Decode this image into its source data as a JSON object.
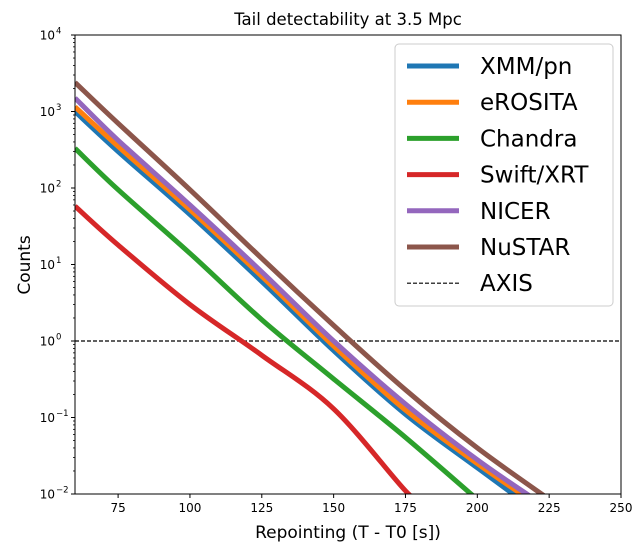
{
  "chart_data": {
    "type": "line",
    "title": "Tail detectability at 3.5 Mpc",
    "xlabel": "Repointing (T - T0 [s])",
    "ylabel": "Counts",
    "xlim": [
      60,
      250
    ],
    "ylim": [
      0.01,
      10000
    ],
    "yscale": "log",
    "xticks": [
      75,
      100,
      125,
      150,
      175,
      200,
      225,
      250
    ],
    "yticks": [
      {
        "value": 0.01,
        "base": "10",
        "exp": "−2"
      },
      {
        "value": 0.1,
        "base": "10",
        "exp": "−1"
      },
      {
        "value": 1,
        "base": "10",
        "exp": "0"
      },
      {
        "value": 10,
        "base": "10",
        "exp": "1"
      },
      {
        "value": 100,
        "base": "10",
        "exp": "2"
      },
      {
        "value": 1000,
        "base": "10",
        "exp": "3"
      },
      {
        "value": 10000,
        "base": "10",
        "exp": "4"
      }
    ],
    "legend_position": "top-right",
    "series": [
      {
        "name": "XMM/pn",
        "color": "#1f77b4",
        "x": [
          60,
          75,
          100,
          125,
          150,
          175,
          200,
          215
        ],
        "values": [
          1000,
          300,
          45,
          6,
          0.75,
          0.11,
          0.022,
          0.0085
        ]
      },
      {
        "name": "eROSITA",
        "color": "#ff7f0e",
        "x": [
          60,
          75,
          100,
          125,
          150,
          175,
          200,
          218
        ],
        "values": [
          1150,
          350,
          52,
          7,
          0.86,
          0.125,
          0.025,
          0.0085
        ]
      },
      {
        "name": "Chandra",
        "color": "#2ca02c",
        "x": [
          60,
          75,
          100,
          125,
          150,
          175,
          200
        ],
        "values": [
          330,
          95,
          14,
          1.9,
          0.32,
          0.055,
          0.0085
        ]
      },
      {
        "name": "Swift/XRT",
        "color": "#d62728",
        "x": [
          60,
          75,
          100,
          125,
          150,
          175,
          180
        ],
        "values": [
          58,
          18,
          3,
          0.65,
          0.13,
          0.011,
          0.0085
        ]
      },
      {
        "name": "NICER",
        "color": "#9467bd",
        "x": [
          60,
          75,
          100,
          125,
          150,
          175,
          200,
          220
        ],
        "values": [
          1500,
          420,
          60,
          8,
          1,
          0.15,
          0.028,
          0.0085
        ]
      },
      {
        "name": "NuSTAR",
        "color": "#8c564b",
        "x": [
          60,
          75,
          100,
          125,
          150,
          175,
          200,
          225
        ],
        "values": [
          2400,
          700,
          95,
          12,
          1.6,
          0.23,
          0.04,
          0.0085
        ]
      }
    ],
    "reference_lines": [
      {
        "name": "AXIS",
        "value": 1,
        "color": "#000000",
        "style": "dashed"
      }
    ]
  }
}
